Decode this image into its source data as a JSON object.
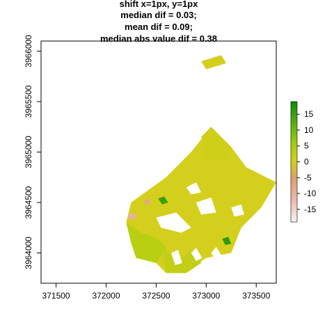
{
  "chart_data": {
    "type": "heatmap",
    "title_lines": [
      "shift x=1px, y=1px",
      "median dif = 0.03;",
      "mean dif = 0.09;",
      "median abs value dif = 0.38"
    ],
    "xlabel": "",
    "ylabel": "",
    "xlim": [
      371350,
      373700
    ],
    "ylim": [
      3963700,
      3966100
    ],
    "x_ticks": [
      371500,
      372000,
      372500,
      373000,
      373500
    ],
    "x_tick_labels": [
      "371500",
      "372000",
      "372500",
      "373000",
      "373500"
    ],
    "y_ticks": [
      3964000,
      3964500,
      3965000,
      3965500,
      3966000
    ],
    "y_tick_labels": [
      "3964000",
      "3964500",
      "3965000",
      "3965500",
      "3966000"
    ],
    "colorbar": {
      "range": [
        -19,
        19
      ],
      "ticks": [
        15,
        10,
        5,
        0,
        -5,
        -10,
        -15
      ],
      "tick_labels": [
        "15",
        "10",
        "5",
        "0",
        "-5",
        "-10",
        "-15"
      ],
      "color_stops": [
        {
          "value": -19,
          "color": "#f2f2f2"
        },
        {
          "value": -12,
          "color": "#ebb9b0"
        },
        {
          "value": -5,
          "color": "#d9a06a"
        },
        {
          "value": 0,
          "color": "#d4cf1c"
        },
        {
          "value": 5,
          "color": "#a6cf0c"
        },
        {
          "value": 12,
          "color": "#58b010"
        },
        {
          "value": 19,
          "color": "#0d8a0a"
        }
      ]
    },
    "dominant_value": 0.03,
    "regions": [
      {
        "name": "main-mass",
        "value": 0,
        "polygon": [
          [
            372250,
            3964500
          ],
          [
            372600,
            3964750
          ],
          [
            372850,
            3965000
          ],
          [
            373050,
            3965250
          ],
          [
            373250,
            3965050
          ],
          [
            373400,
            3964850
          ],
          [
            373700,
            3964700
          ],
          [
            373550,
            3964450
          ],
          [
            373350,
            3964250
          ],
          [
            373250,
            3964000
          ],
          [
            373000,
            3963950
          ],
          [
            372850,
            3963850
          ],
          [
            372600,
            3963800
          ],
          [
            372500,
            3963900
          ],
          [
            372300,
            3964100
          ],
          [
            372200,
            3964300
          ]
        ]
      },
      {
        "name": "north-blob",
        "value": 0.5,
        "polygon": [
          [
            372950,
            3965150
          ],
          [
            373050,
            3965250
          ],
          [
            373250,
            3965050
          ],
          [
            373200,
            3964900
          ],
          [
            373000,
            3964950
          ]
        ]
      },
      {
        "name": "southwest-lobe",
        "value": 3,
        "polygon": [
          [
            372200,
            3964300
          ],
          [
            372350,
            3964200
          ],
          [
            372500,
            3964150
          ],
          [
            372600,
            3964050
          ],
          [
            372500,
            3963900
          ],
          [
            372300,
            3963950
          ],
          [
            372250,
            3964100
          ]
        ]
      },
      {
        "name": "south-fan",
        "value": 2,
        "polygon": [
          [
            372550,
            3964050
          ],
          [
            372750,
            3963950
          ],
          [
            372900,
            3964050
          ],
          [
            372950,
            3963900
          ],
          [
            372800,
            3963800
          ],
          [
            372600,
            3963800
          ]
        ]
      },
      {
        "name": "northeast-outlier",
        "value": 0,
        "polygon": [
          [
            372950,
            3965900
          ],
          [
            373150,
            3965960
          ],
          [
            373200,
            3965880
          ],
          [
            373000,
            3965820
          ]
        ]
      },
      {
        "name": "green-patch-west",
        "value": 15,
        "polygon": [
          [
            372520,
            3964540
          ],
          [
            372580,
            3964560
          ],
          [
            372620,
            3964500
          ],
          [
            372560,
            3964480
          ]
        ]
      },
      {
        "name": "green-patch-east",
        "value": 16,
        "polygon": [
          [
            373160,
            3964140
          ],
          [
            373220,
            3964160
          ],
          [
            373250,
            3964090
          ],
          [
            373190,
            3964080
          ]
        ]
      },
      {
        "name": "pink-patch",
        "value": -10,
        "polygon": [
          [
            372220,
            3964380
          ],
          [
            372290,
            3964400
          ],
          [
            372300,
            3964340
          ],
          [
            372230,
            3964330
          ]
        ]
      },
      {
        "name": "pink-patch-2",
        "value": -8,
        "polygon": [
          [
            372380,
            3964520
          ],
          [
            372430,
            3964540
          ],
          [
            372440,
            3964490
          ],
          [
            372390,
            3964480
          ]
        ]
      }
    ],
    "holes": [
      {
        "polygon": [
          [
            372500,
            3964350
          ],
          [
            372700,
            3964400
          ],
          [
            372850,
            3964250
          ],
          [
            372750,
            3964200
          ],
          [
            372550,
            3964250
          ]
        ]
      },
      {
        "polygon": [
          [
            372900,
            3964500
          ],
          [
            373050,
            3964550
          ],
          [
            373100,
            3964400
          ],
          [
            372950,
            3964380
          ]
        ]
      },
      {
        "polygon": [
          [
            372800,
            3964650
          ],
          [
            372900,
            3964700
          ],
          [
            372950,
            3964600
          ],
          [
            372850,
            3964580
          ]
        ]
      },
      {
        "polygon": [
          [
            373250,
            3964450
          ],
          [
            373350,
            3964480
          ],
          [
            373380,
            3964380
          ],
          [
            373280,
            3964360
          ]
        ]
      },
      {
        "polygon": [
          [
            372650,
            3964000
          ],
          [
            372720,
            3964030
          ],
          [
            372760,
            3963900
          ],
          [
            372690,
            3963880
          ]
        ]
      },
      {
        "polygon": [
          [
            372850,
            3964000
          ],
          [
            372900,
            3964050
          ],
          [
            372960,
            3963950
          ],
          [
            372900,
            3963920
          ]
        ]
      },
      {
        "polygon": [
          [
            373050,
            3964000
          ],
          [
            373100,
            3964060
          ],
          [
            373150,
            3963980
          ],
          [
            373080,
            3963950
          ]
        ]
      }
    ]
  }
}
